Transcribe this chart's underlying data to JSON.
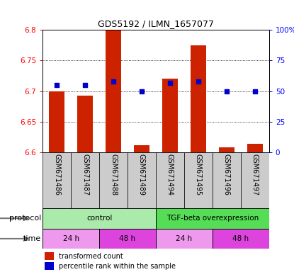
{
  "title": "GDS5192 / ILMN_1657077",
  "samples": [
    "GSM671486",
    "GSM671487",
    "GSM671488",
    "GSM671489",
    "GSM671494",
    "GSM671495",
    "GSM671496",
    "GSM671497"
  ],
  "bar_values": [
    6.7,
    6.693,
    6.8,
    6.612,
    6.72,
    6.775,
    6.608,
    6.614
  ],
  "percentile_values": [
    55,
    55,
    58,
    50,
    57,
    58,
    50,
    50
  ],
  "ylim": [
    6.6,
    6.8
  ],
  "yticks_left": [
    6.6,
    6.65,
    6.7,
    6.75,
    6.8
  ],
  "yticks_right": [
    0,
    25,
    50,
    75,
    100
  ],
  "bar_color": "#cc2200",
  "dot_color": "#0000cc",
  "proto_data": [
    {
      "label": "control",
      "start": 0,
      "end": 4,
      "color": "#aaeaaa"
    },
    {
      "label": "TGF-beta overexpression",
      "start": 4,
      "end": 8,
      "color": "#55dd55"
    }
  ],
  "time_data": [
    {
      "label": "24 h",
      "start": 0,
      "end": 2,
      "color": "#ee99ee"
    },
    {
      "label": "48 h",
      "start": 2,
      "end": 4,
      "color": "#dd44dd"
    },
    {
      "label": "24 h",
      "start": 4,
      "end": 6,
      "color": "#ee99ee"
    },
    {
      "label": "48 h",
      "start": 6,
      "end": 8,
      "color": "#dd44dd"
    }
  ],
  "legend_red_label": "transformed count",
  "legend_blue_label": "percentile rank within the sample",
  "bar_color_legend": "#cc2200",
  "dot_color_legend": "#0000cc",
  "bar_width": 0.55,
  "ybase": 6.6,
  "label_fontsize": 7,
  "tick_fontsize": 7.5,
  "title_fontsize": 9
}
